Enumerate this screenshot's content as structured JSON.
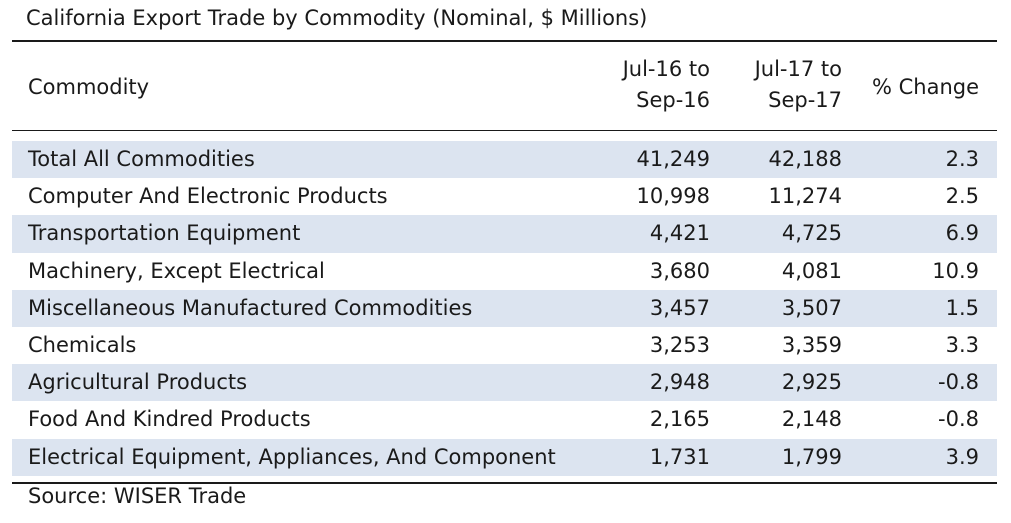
{
  "title": "California Export Trade by Commodity (Nominal, $ Millions)",
  "source": "Source: WISER Trade",
  "colors": {
    "shaded_row": "#dce4f0",
    "rule": "#1a1a1a"
  },
  "chart_data": {
    "type": "table",
    "title": "California Export Trade by Commodity (Nominal, $ Millions)",
    "columns": [
      {
        "label_lines": [
          "Commodity"
        ]
      },
      {
        "label_lines": [
          "Jul-16  to",
          "Sep-16"
        ]
      },
      {
        "label_lines": [
          "Jul-17  to",
          "Sep-17"
        ]
      },
      {
        "label_lines": [
          "% Change"
        ]
      }
    ],
    "rows": [
      {
        "commodity": "Total All Commodities",
        "v1": "41,249",
        "v2": "42,188",
        "pct": "2.3"
      },
      {
        "commodity": "Computer And Electronic Products",
        "v1": "10,998",
        "v2": "11,274",
        "pct": "2.5"
      },
      {
        "commodity": "Transportation Equipment",
        "v1": "4,421",
        "v2": "4,725",
        "pct": "6.9"
      },
      {
        "commodity": "Machinery, Except Electrical",
        "v1": "3,680",
        "v2": "4,081",
        "pct": "10.9"
      },
      {
        "commodity": "Miscellaneous Manufactured Commodities",
        "v1": "3,457",
        "v2": "3,507",
        "pct": "1.5"
      },
      {
        "commodity": "Chemicals",
        "v1": "3,253",
        "v2": "3,359",
        "pct": "3.3"
      },
      {
        "commodity": "Agricultural Products",
        "v1": "2,948",
        "v2": "2,925",
        "pct": "-0.8"
      },
      {
        "commodity": "Food And Kindred Products",
        "v1": "2,165",
        "v2": "2,148",
        "pct": "-0.8"
      },
      {
        "commodity": "Electrical Equipment, Appliances, And Component",
        "v1": "1,731",
        "v2": "1,799",
        "pct": "3.9"
      }
    ],
    "shaded_rows": [
      0,
      2,
      4,
      6,
      8
    ]
  }
}
